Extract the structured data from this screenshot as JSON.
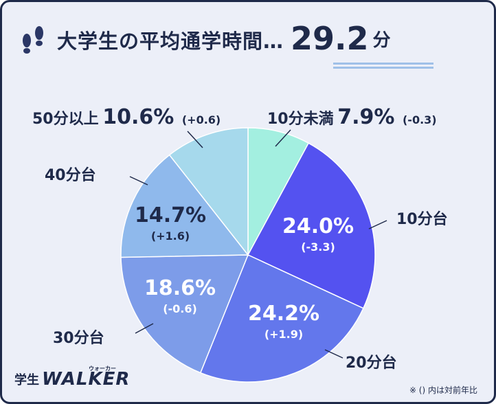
{
  "header": {
    "title": "大学生の平均通学時間…",
    "value": "29.2",
    "unit": "分"
  },
  "chart_data": {
    "type": "pie",
    "title": "大学生の平均通学時間…29.2分",
    "start_angle_deg": 0,
    "direction": "clockwise",
    "slices": [
      {
        "label": "10分未満",
        "value": 7.9,
        "value_text": "7.9%",
        "change": "(-0.3)",
        "color": "#a3efe0"
      },
      {
        "label": "10分台",
        "value": 24.0,
        "value_text": "24.0%",
        "change": "(-3.3)",
        "color": "#5452f0"
      },
      {
        "label": "20分台",
        "value": 24.2,
        "value_text": "24.2%",
        "change": "(+1.9)",
        "color": "#6377ec"
      },
      {
        "label": "30分台",
        "value": 18.6,
        "value_text": "18.6%",
        "change": "(-0.6)",
        "color": "#7d9ce9"
      },
      {
        "label": "40分台",
        "value": 14.7,
        "value_text": "14.7%",
        "change": "(+1.6)",
        "color": "#8fb9ec"
      },
      {
        "label": "50分以上",
        "value": 10.6,
        "value_text": "10.6%",
        "change": "(+0.6)",
        "color": "#a6d9ec"
      }
    ]
  },
  "logo": {
    "gakusei": "学生",
    "walker": "WALKER",
    "kana": "ウォーカー"
  },
  "footnote": "※ () 内は対前年比"
}
